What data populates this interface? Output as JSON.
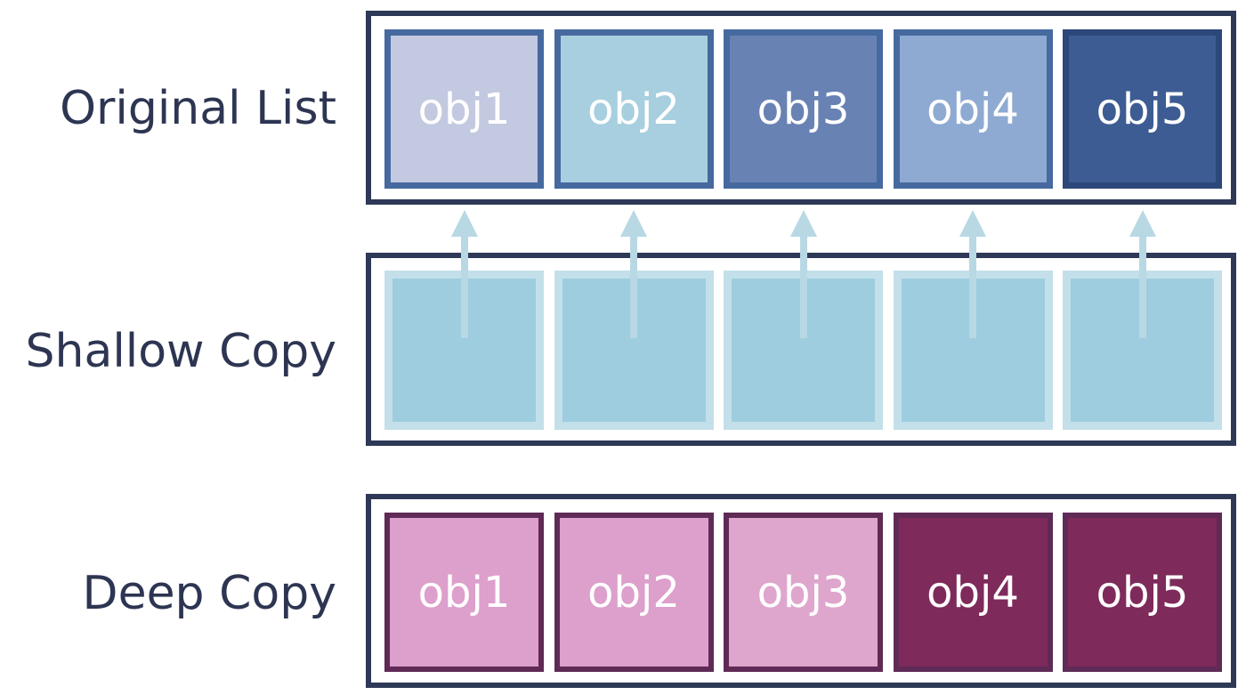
{
  "labels": {
    "original": "Original List",
    "shallow": "Shallow Copy",
    "deep": "Deep Copy"
  },
  "original": {
    "items": [
      {
        "label": "obj1",
        "fill": "#c2c9e0",
        "border": "#46699f"
      },
      {
        "label": "obj2",
        "fill": "#a7cfe0",
        "border": "#46699f"
      },
      {
        "label": "obj3",
        "fill": "#6882b4",
        "border": "#46699f"
      },
      {
        "label": "obj4",
        "fill": "#8eaad2",
        "border": "#46699f"
      },
      {
        "label": "obj5",
        "fill": "#3d5c93",
        "border": "#2c477a"
      }
    ]
  },
  "shallow": {
    "items": [
      {
        "fill": "#9dcddf",
        "border": "#c3e0ea"
      },
      {
        "fill": "#9dcddf",
        "border": "#c3e0ea"
      },
      {
        "fill": "#9dcddf",
        "border": "#c3e0ea"
      },
      {
        "fill": "#9dcddf",
        "border": "#c3e0ea"
      },
      {
        "fill": "#9dcddf",
        "border": "#c3e0ea"
      }
    ],
    "pointer_color": "#b8d8e4"
  },
  "deep": {
    "items": [
      {
        "label": "obj1",
        "fill": "#dd9fcc",
        "border": "#5f2a56"
      },
      {
        "label": "obj2",
        "fill": "#dd9fcc",
        "border": "#5f2a56"
      },
      {
        "label": "obj3",
        "fill": "#dea6cd",
        "border": "#5f2a56"
      },
      {
        "label": "obj4",
        "fill": "#7e2a5b",
        "border": "#5f2a56"
      },
      {
        "label": "obj5",
        "fill": "#7e2a5b",
        "border": "#5f2a56"
      }
    ]
  },
  "colors": {
    "frame": "#2e3857",
    "label_text": "#2d3552",
    "cell_text": "#ffffff"
  }
}
